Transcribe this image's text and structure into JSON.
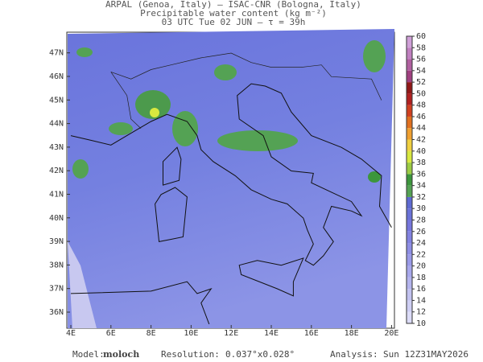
{
  "header": {
    "line1": "ARPAL (Genoa, Italy)  —  ISAC-CNR (Bologna, Italy)",
    "line2": "Precipitable water content (kg m⁻²)",
    "line3": "03 UTC Tue 02 JUN  —  τ = 39h"
  },
  "map": {
    "lat_labels": [
      "36N",
      "37N",
      "38N",
      "39N",
      "40N",
      "41N",
      "42N",
      "43N",
      "44N",
      "45N",
      "46N",
      "47N"
    ],
    "lon_labels": [
      "4E",
      "6E",
      "8E",
      "10E",
      "12E",
      "14E",
      "16E",
      "18E",
      "20E"
    ]
  },
  "colorbar": {
    "ticks": [
      10,
      12,
      14,
      16,
      18,
      20,
      22,
      24,
      26,
      28,
      30,
      32,
      34,
      36,
      38,
      40,
      42,
      44,
      46,
      48,
      50,
      52,
      54,
      56,
      58,
      60
    ],
    "colors": [
      "#dcdcf8",
      "#cfcff4",
      "#c2c2f0",
      "#b4b4ee",
      "#a8a8ec",
      "#9a9ae8",
      "#8e8ee4",
      "#8282e0",
      "#7676dc",
      "#6a72d8",
      "#5e6ad2",
      "#54a254",
      "#3c963c",
      "#9ccc44",
      "#d8e840",
      "#f0d040",
      "#f0a030",
      "#e07020",
      "#d04020",
      "#b02020",
      "#901818",
      "#a04080",
      "#b060a0",
      "#c080c0",
      "#d0a0d8"
    ]
  },
  "footer": {
    "model_label": "Model:",
    "model": "moloch",
    "resolution_label": "Resolution:",
    "resolution": "0.037°x0.028°",
    "analysis_label": "Analysis:",
    "analysis": "Sun 12Z31MAY2026"
  }
}
